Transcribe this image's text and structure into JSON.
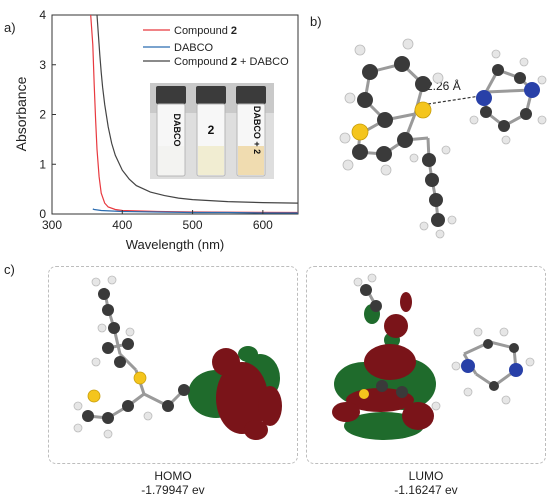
{
  "panel_labels": {
    "a": "a)",
    "b": "b)",
    "c": "c)"
  },
  "chart_data": {
    "type": "line",
    "xlabel": "Wavelength (nm)",
    "ylabel": "Absorbance",
    "xlim": [
      300,
      650
    ],
    "ylim": [
      0,
      4
    ],
    "xticks": [
      "300",
      "400",
      "500",
      "600"
    ],
    "yticks": [
      "0",
      "1",
      "2",
      "3",
      "4"
    ],
    "legend_placement": "top-right",
    "series": [
      {
        "name": "Compound 2",
        "color": "#e8393f",
        "x": [
          355,
          358,
          360,
          362,
          364,
          367,
          370,
          375,
          380,
          390,
          400,
          450,
          500,
          650
        ],
        "y": [
          4.0,
          3.4,
          2.6,
          1.9,
          1.3,
          0.75,
          0.42,
          0.22,
          0.14,
          0.09,
          0.07,
          0.05,
          0.04,
          0.03
        ]
      },
      {
        "name": "DABCO",
        "color": "#2b6cb0",
        "x": [
          358,
          360,
          370,
          400,
          450,
          500,
          550,
          600,
          650
        ],
        "y": [
          0.1,
          0.09,
          0.07,
          0.05,
          0.04,
          0.03,
          0.03,
          0.02,
          0.02
        ]
      },
      {
        "name": "Compound 2 + DABCO",
        "color": "#444444",
        "x": [
          364,
          366,
          368,
          370,
          372,
          375,
          380,
          385,
          390,
          400,
          410,
          420,
          440,
          460,
          480,
          500,
          550,
          600,
          650
        ],
        "y": [
          4.0,
          3.6,
          3.2,
          2.85,
          2.55,
          2.2,
          1.75,
          1.42,
          1.18,
          0.88,
          0.7,
          0.57,
          0.44,
          0.37,
          0.32,
          0.29,
          0.25,
          0.23,
          0.22
        ]
      }
    ]
  },
  "vials": [
    {
      "label": "DABCO",
      "tint": "#f3f3f1"
    },
    {
      "label": "2",
      "tint": "#f1edd2"
    },
    {
      "label": "DABCO + 2",
      "tint": "#f0dcb0"
    }
  ],
  "structure_b": {
    "distance_label": "2.26 Å"
  },
  "orbitals": [
    {
      "name": "HOMO",
      "energy": "-1.79947 ev"
    },
    {
      "name": "LUMO",
      "energy": "-1.16247 ev"
    }
  ],
  "colors": {
    "carbon": "#3a3a3a",
    "hydrogen": "#e6e6e6",
    "sulfur": "#f4c51d",
    "nitrogen": "#2840a8",
    "orbital_positive": "#2e8a3d",
    "orbital_negative": "#8a1a1f"
  }
}
